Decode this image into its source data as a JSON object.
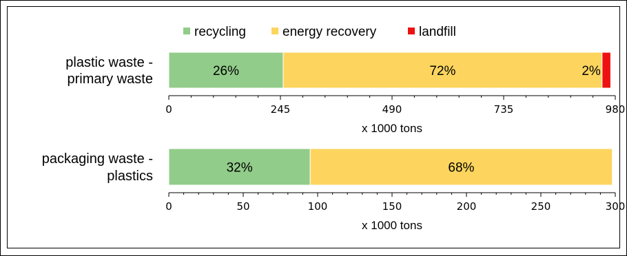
{
  "colors": {
    "recycling": "#92cc8a",
    "energy_recovery": "#fdd55e",
    "landfill": "#ee1111"
  },
  "legend": [
    "recycling",
    "energy recovery",
    "landfill"
  ],
  "chart_data": [
    {
      "type": "bar",
      "orientation": "horizontal",
      "stacked": true,
      "category": "plastic waste - primary waste",
      "category_lines": [
        "plastic waste -",
        "primary waste"
      ],
      "series": [
        {
          "name": "recycling",
          "value": 251,
          "label": "26%"
        },
        {
          "name": "energy recovery",
          "value": 700,
          "label": "72%"
        },
        {
          "name": "landfill",
          "value": 19,
          "label": "2%"
        }
      ],
      "xlim": [
        0,
        980
      ],
      "ticks": [
        "0",
        "245",
        "490",
        "735",
        "980"
      ],
      "xlabel": "x 1000 tons"
    },
    {
      "type": "bar",
      "orientation": "horizontal",
      "stacked": true,
      "category": "packaging waste - plastics",
      "category_lines": [
        "packaging waste -",
        "plastics"
      ],
      "series": [
        {
          "name": "recycling",
          "value": 95,
          "label": "32%"
        },
        {
          "name": "energy recovery",
          "value": 203,
          "label": "68%"
        }
      ],
      "xlim": [
        0,
        300
      ],
      "ticks": [
        "0",
        "50",
        "100",
        "150",
        "200",
        "250",
        "300"
      ],
      "xlabel": "x 1000 tons"
    }
  ]
}
